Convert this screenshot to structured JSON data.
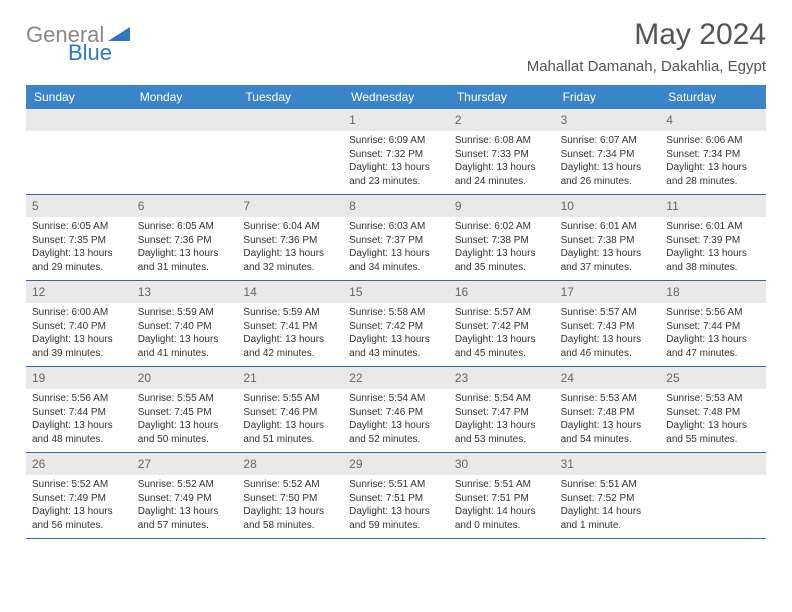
{
  "logo": {
    "text1": "General",
    "text2": "Blue"
  },
  "title": "May 2024",
  "location": "Mahallat Damanah, Dakahlia, Egypt",
  "colors": {
    "header_bg": "#3b84c7",
    "header_text": "#ffffff",
    "daynum_bg": "#e9e9e9",
    "daynum_text": "#666666",
    "week_divider": "#2f6aa5",
    "body_text": "#333333",
    "title_text": "#555555",
    "logo_gray": "#888888",
    "logo_blue": "#2f78c1"
  },
  "weekdays": [
    "Sunday",
    "Monday",
    "Tuesday",
    "Wednesday",
    "Thursday",
    "Friday",
    "Saturday"
  ],
  "weeks": [
    [
      {
        "n": "",
        "sr": "",
        "ss": "",
        "dl": ""
      },
      {
        "n": "",
        "sr": "",
        "ss": "",
        "dl": ""
      },
      {
        "n": "",
        "sr": "",
        "ss": "",
        "dl": ""
      },
      {
        "n": "1",
        "sr": "6:09 AM",
        "ss": "7:32 PM",
        "dl": "13 hours and 23 minutes."
      },
      {
        "n": "2",
        "sr": "6:08 AM",
        "ss": "7:33 PM",
        "dl": "13 hours and 24 minutes."
      },
      {
        "n": "3",
        "sr": "6:07 AM",
        "ss": "7:34 PM",
        "dl": "13 hours and 26 minutes."
      },
      {
        "n": "4",
        "sr": "6:06 AM",
        "ss": "7:34 PM",
        "dl": "13 hours and 28 minutes."
      }
    ],
    [
      {
        "n": "5",
        "sr": "6:05 AM",
        "ss": "7:35 PM",
        "dl": "13 hours and 29 minutes."
      },
      {
        "n": "6",
        "sr": "6:05 AM",
        "ss": "7:36 PM",
        "dl": "13 hours and 31 minutes."
      },
      {
        "n": "7",
        "sr": "6:04 AM",
        "ss": "7:36 PM",
        "dl": "13 hours and 32 minutes."
      },
      {
        "n": "8",
        "sr": "6:03 AM",
        "ss": "7:37 PM",
        "dl": "13 hours and 34 minutes."
      },
      {
        "n": "9",
        "sr": "6:02 AM",
        "ss": "7:38 PM",
        "dl": "13 hours and 35 minutes."
      },
      {
        "n": "10",
        "sr": "6:01 AM",
        "ss": "7:38 PM",
        "dl": "13 hours and 37 minutes."
      },
      {
        "n": "11",
        "sr": "6:01 AM",
        "ss": "7:39 PM",
        "dl": "13 hours and 38 minutes."
      }
    ],
    [
      {
        "n": "12",
        "sr": "6:00 AM",
        "ss": "7:40 PM",
        "dl": "13 hours and 39 minutes."
      },
      {
        "n": "13",
        "sr": "5:59 AM",
        "ss": "7:40 PM",
        "dl": "13 hours and 41 minutes."
      },
      {
        "n": "14",
        "sr": "5:59 AM",
        "ss": "7:41 PM",
        "dl": "13 hours and 42 minutes."
      },
      {
        "n": "15",
        "sr": "5:58 AM",
        "ss": "7:42 PM",
        "dl": "13 hours and 43 minutes."
      },
      {
        "n": "16",
        "sr": "5:57 AM",
        "ss": "7:42 PM",
        "dl": "13 hours and 45 minutes."
      },
      {
        "n": "17",
        "sr": "5:57 AM",
        "ss": "7:43 PM",
        "dl": "13 hours and 46 minutes."
      },
      {
        "n": "18",
        "sr": "5:56 AM",
        "ss": "7:44 PM",
        "dl": "13 hours and 47 minutes."
      }
    ],
    [
      {
        "n": "19",
        "sr": "5:56 AM",
        "ss": "7:44 PM",
        "dl": "13 hours and 48 minutes."
      },
      {
        "n": "20",
        "sr": "5:55 AM",
        "ss": "7:45 PM",
        "dl": "13 hours and 50 minutes."
      },
      {
        "n": "21",
        "sr": "5:55 AM",
        "ss": "7:46 PM",
        "dl": "13 hours and 51 minutes."
      },
      {
        "n": "22",
        "sr": "5:54 AM",
        "ss": "7:46 PM",
        "dl": "13 hours and 52 minutes."
      },
      {
        "n": "23",
        "sr": "5:54 AM",
        "ss": "7:47 PM",
        "dl": "13 hours and 53 minutes."
      },
      {
        "n": "24",
        "sr": "5:53 AM",
        "ss": "7:48 PM",
        "dl": "13 hours and 54 minutes."
      },
      {
        "n": "25",
        "sr": "5:53 AM",
        "ss": "7:48 PM",
        "dl": "13 hours and 55 minutes."
      }
    ],
    [
      {
        "n": "26",
        "sr": "5:52 AM",
        "ss": "7:49 PM",
        "dl": "13 hours and 56 minutes."
      },
      {
        "n": "27",
        "sr": "5:52 AM",
        "ss": "7:49 PM",
        "dl": "13 hours and 57 minutes."
      },
      {
        "n": "28",
        "sr": "5:52 AM",
        "ss": "7:50 PM",
        "dl": "13 hours and 58 minutes."
      },
      {
        "n": "29",
        "sr": "5:51 AM",
        "ss": "7:51 PM",
        "dl": "13 hours and 59 minutes."
      },
      {
        "n": "30",
        "sr": "5:51 AM",
        "ss": "7:51 PM",
        "dl": "14 hours and 0 minutes."
      },
      {
        "n": "31",
        "sr": "5:51 AM",
        "ss": "7:52 PM",
        "dl": "14 hours and 1 minute."
      },
      {
        "n": "",
        "sr": "",
        "ss": "",
        "dl": ""
      }
    ]
  ],
  "labels": {
    "sunrise": "Sunrise:",
    "sunset": "Sunset:",
    "daylight": "Daylight:"
  }
}
